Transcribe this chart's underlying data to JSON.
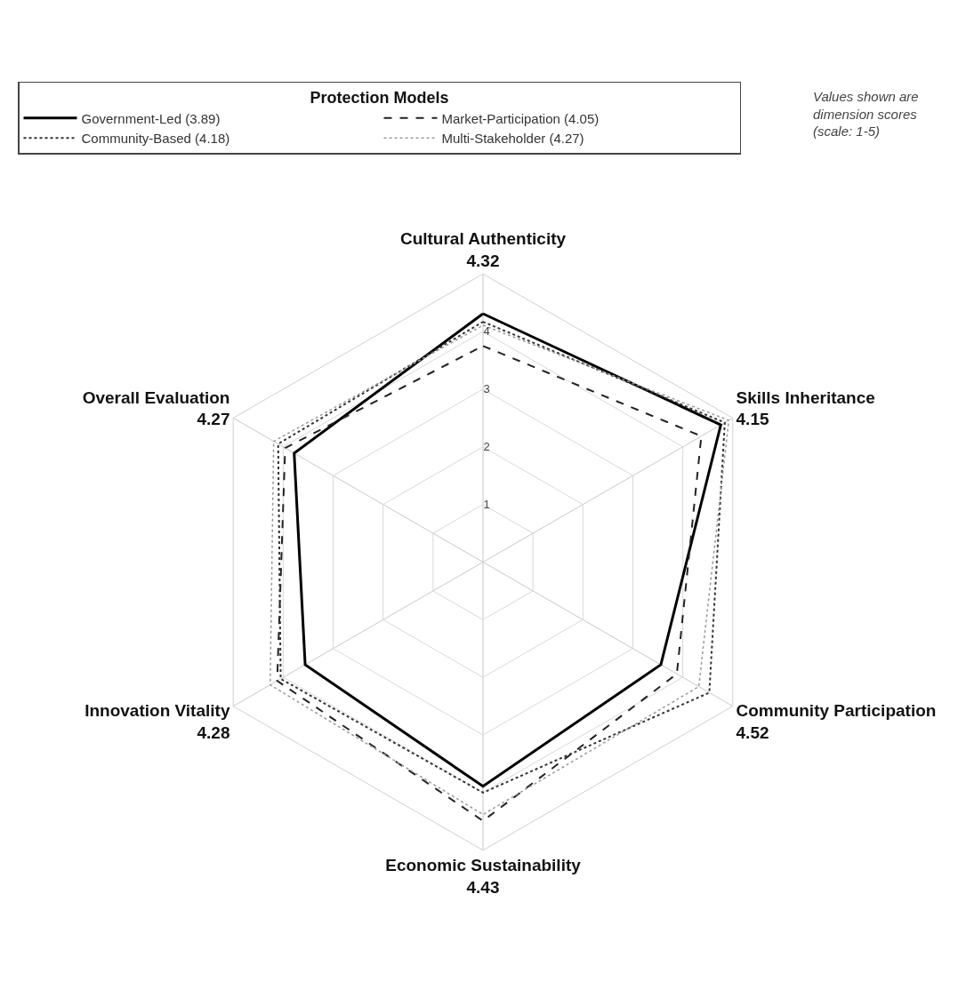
{
  "chart_data": {
    "type": "radar",
    "legend_title": "Protection Models",
    "categories": [
      "Cultural Authenticity",
      "Skills Inheritance",
      "Community Participation",
      "Economic Sustainability",
      "Innovation Vitality",
      "Overall Evaluation"
    ],
    "series": [
      {
        "name": "Government-Led (3.89)",
        "color": "#000000",
        "line_style": "solid",
        "values": [
          4.31,
          4.76,
          3.56,
          3.89,
          3.56,
          3.78
        ]
      },
      {
        "name": "Market-Participation (4.05)",
        "color": "#222222",
        "line_style": "dashed",
        "values": [
          3.75,
          4.37,
          3.88,
          4.49,
          4.12,
          3.96
        ]
      },
      {
        "name": "Community-Based (4.18)",
        "color": "#333333",
        "line_style": "dotted",
        "values": [
          4.17,
          4.84,
          4.53,
          4.0,
          4.05,
          4.1
        ]
      },
      {
        "name": "Multi-Stakeholder (4.27)",
        "color": "#999999",
        "line_style": "dotted",
        "values": [
          4.11,
          4.92,
          4.32,
          4.38,
          4.26,
          4.19
        ]
      }
    ],
    "annotations": [
      "4.32",
      "4.15",
      "4.52",
      "4.43",
      "4.28",
      "4.27",
      "Values shown are dimension scores (scale: 1-5)"
    ],
    "ylim": [
      0,
      5
    ],
    "yticks": [
      1,
      2,
      3,
      4
    ],
    "grid": true,
    "legend": "top",
    "marker": "none"
  }
}
